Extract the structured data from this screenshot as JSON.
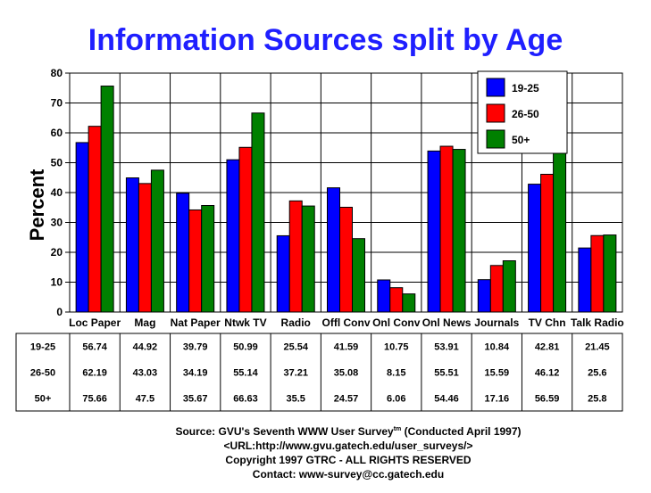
{
  "chart_data": {
    "type": "bar",
    "title": "Information Sources split by Age",
    "ylabel": "Percent",
    "ylim": [
      0,
      80
    ],
    "yticks": [
      0,
      10,
      20,
      30,
      40,
      50,
      60,
      70,
      80
    ],
    "grid": true,
    "legend": "top-right",
    "categories": [
      "Loc Paper",
      "Mag",
      "Nat Paper",
      "Ntwk TV",
      "Radio",
      "Offl Conv",
      "Onl Conv",
      "Onl News",
      "Journals",
      "TV Chn",
      "Talk Radio"
    ],
    "series": [
      {
        "name": "19-25",
        "color": "#0000ff",
        "values": [
          56.74,
          44.92,
          39.79,
          50.99,
          25.54,
          41.59,
          10.75,
          53.91,
          10.84,
          42.81,
          21.45
        ],
        "labels": [
          "56.74",
          "44.92",
          "39.79",
          "50.99",
          "25.54",
          "41.59",
          "10.75",
          "53.91",
          "10.84",
          "42.81",
          "21.45"
        ]
      },
      {
        "name": "26-50",
        "color": "#ff0000",
        "values": [
          62.19,
          43.03,
          34.19,
          55.14,
          37.21,
          35.08,
          8.15,
          55.51,
          15.59,
          46.12,
          25.6
        ],
        "labels": [
          "62.19",
          "43.03",
          "34.19",
          "55.14",
          "37.21",
          "35.08",
          "8.15",
          "55.51",
          "15.59",
          "46.12",
          "25.6"
        ]
      },
      {
        "name": "50+",
        "color": "#008000",
        "values": [
          75.66,
          47.5,
          35.67,
          66.63,
          35.5,
          24.57,
          6.06,
          54.46,
          17.16,
          56.59,
          25.8
        ],
        "labels": [
          "75.66",
          "47.5",
          "35.67",
          "66.63",
          "35.5",
          "24.57",
          "6.06",
          "54.46",
          "17.16",
          "56.59",
          "25.8"
        ]
      }
    ]
  },
  "footer": {
    "source_prefix": "Source: GVU's Seventh WWW User Survey",
    "source_tm": "tm",
    "source_suffix": " (Conducted April 1997)",
    "url": "<URL:http://www.gvu.gatech.edu/user_surveys/>",
    "copyright": "Copyright 1997 GTRC - ALL RIGHTS RESERVED",
    "contact": "Contact: www-survey@cc.gatech.edu"
  }
}
